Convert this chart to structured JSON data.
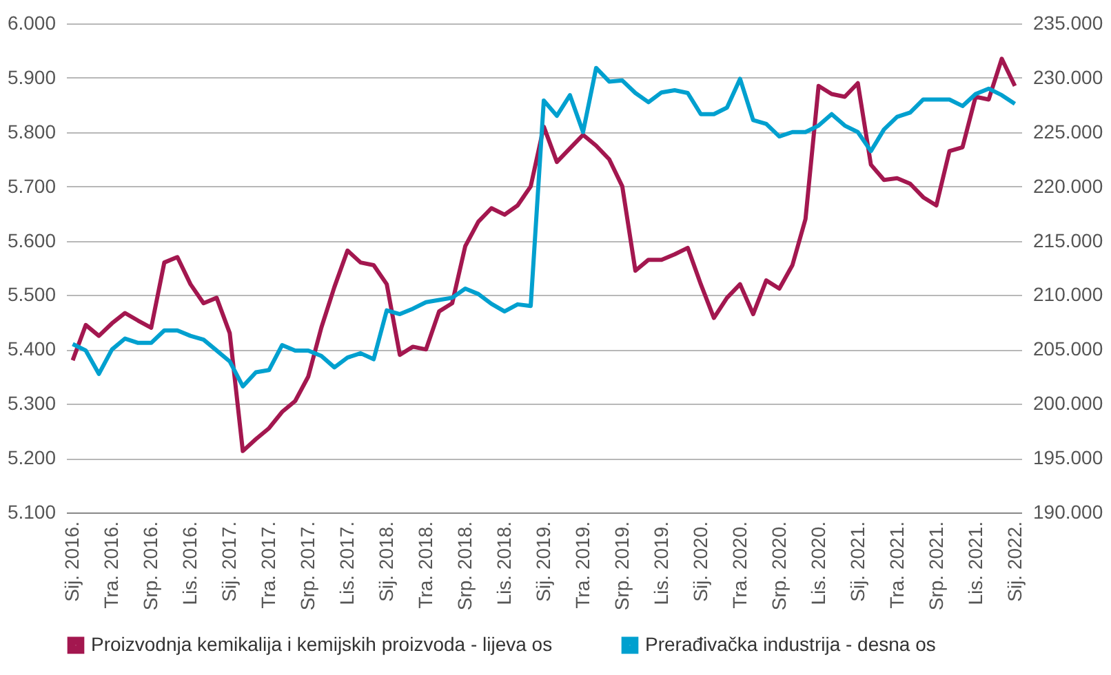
{
  "chart_data": {
    "type": "line",
    "categories": [
      "Sij. 2016.",
      null,
      null,
      "Tra. 2016.",
      null,
      null,
      "Srp. 2016.",
      null,
      null,
      "Lis. 2016.",
      null,
      null,
      "Sij. 2017.",
      null,
      null,
      "Tra. 2017.",
      null,
      null,
      "Srp. 2017.",
      null,
      null,
      "Lis. 2017.",
      null,
      null,
      "Sij. 2018.",
      null,
      null,
      "Tra. 2018.",
      null,
      null,
      "Srp. 2018.",
      null,
      null,
      "Lis. 2018.",
      null,
      null,
      "Sij. 2019.",
      null,
      null,
      "Tra. 2019.",
      null,
      null,
      "Srp. 2019.",
      null,
      null,
      "Lis. 2019.",
      null,
      null,
      "Sij. 2020.",
      null,
      null,
      "Tra. 2020.",
      null,
      null,
      "Srp. 2020.",
      null,
      null,
      "Lis. 2020.",
      null,
      null,
      "Sij. 2021.",
      null,
      null,
      "Tra. 2021.",
      null,
      null,
      "Srp. 2021.",
      null,
      null,
      "Lis. 2021.",
      null,
      null,
      "Sij. 2022."
    ],
    "series": [
      {
        "name": "Proizvodnja kemikalija i kemijskih proizvoda - lijeva os",
        "color": "#a3174f",
        "axis": "y",
        "values": [
          5380,
          5445,
          5425,
          5448,
          5467,
          5453,
          5440,
          5560,
          5570,
          5520,
          5485,
          5495,
          5430,
          5213,
          5235,
          5255,
          5285,
          5305,
          5350,
          5440,
          5515,
          5582,
          5560,
          5555,
          5520,
          5390,
          5405,
          5400,
          5470,
          5485,
          5590,
          5635,
          5660,
          5648,
          5665,
          5700,
          5810,
          5745,
          5770,
          5795,
          5775,
          5750,
          5700,
          5545,
          5565,
          5565,
          5575,
          5587,
          5520,
          5458,
          5495,
          5520,
          5465,
          5527,
          5512,
          5555,
          5640,
          5885,
          5870,
          5865,
          5890,
          5740,
          5712,
          5715,
          5705,
          5680,
          5665,
          5765,
          5772,
          5865,
          5860,
          5935,
          5885
        ]
      },
      {
        "name": "Prerađivačka industrija -  desna os",
        "color": "#00a0cf",
        "axis": "y2",
        "values": [
          205500,
          204900,
          202750,
          205000,
          206000,
          205600,
          205600,
          206750,
          206750,
          206250,
          205900,
          204900,
          203900,
          201600,
          202900,
          203100,
          205400,
          204900,
          204900,
          204400,
          203350,
          204250,
          204650,
          204100,
          208600,
          208250,
          208750,
          209350,
          209550,
          209750,
          210600,
          210100,
          209200,
          208500,
          209150,
          209000,
          227900,
          226500,
          228400,
          225000,
          230900,
          229650,
          229750,
          228600,
          227750,
          228650,
          228850,
          228600,
          226650,
          226650,
          227250,
          229900,
          226100,
          225750,
          224600,
          225000,
          225000,
          225600,
          226650,
          225600,
          225000,
          223250,
          225250,
          226400,
          226800,
          228000,
          228000,
          228000,
          227400,
          228500,
          229000,
          228400,
          227600
        ]
      }
    ],
    "ylim": [
      5100,
      6000
    ],
    "yticks": [
      {
        "value": 5100,
        "label": "5.100"
      },
      {
        "value": 5200,
        "label": "5.200"
      },
      {
        "value": 5300,
        "label": "5.300"
      },
      {
        "value": 5400,
        "label": "5.400"
      },
      {
        "value": 5500,
        "label": "5.500"
      },
      {
        "value": 5600,
        "label": "5.600"
      },
      {
        "value": 5700,
        "label": "5.700"
      },
      {
        "value": 5800,
        "label": "5.800"
      },
      {
        "value": 5900,
        "label": "5.900"
      },
      {
        "value": 6000,
        "label": "6.000"
      }
    ],
    "y2lim": [
      190000,
      235000
    ],
    "y2ticks": [
      {
        "value": 190000,
        "label": "190.000"
      },
      {
        "value": 195000,
        "label": "195.000"
      },
      {
        "value": 200000,
        "label": "200.000"
      },
      {
        "value": 205000,
        "label": "205.000"
      },
      {
        "value": 210000,
        "label": "210.000"
      },
      {
        "value": 215000,
        "label": "215.000"
      },
      {
        "value": 220000,
        "label": "220.000"
      },
      {
        "value": 225000,
        "label": "225.000"
      },
      {
        "value": 230000,
        "label": "230.000"
      },
      {
        "value": 235000,
        "label": "235.000"
      }
    ],
    "grid": "y",
    "legend": "bottom"
  }
}
